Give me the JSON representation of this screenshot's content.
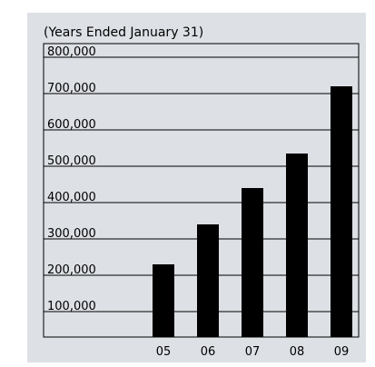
{
  "chart_data": {
    "type": "bar",
    "subtitle": "(Years Ended January 31)",
    "categories": [
      "05",
      "06",
      "07",
      "08",
      "09"
    ],
    "values": [
      230000,
      340000,
      440000,
      535000,
      720000
    ],
    "ylim": [
      0,
      800000
    ],
    "yticks": [
      "800,000",
      "700,000",
      "600,000",
      "500,000",
      "400,000",
      "300,000",
      "200,000",
      "100,000"
    ],
    "grid": true,
    "bar_color": "#000000",
    "background_color": "#dde0e5"
  }
}
